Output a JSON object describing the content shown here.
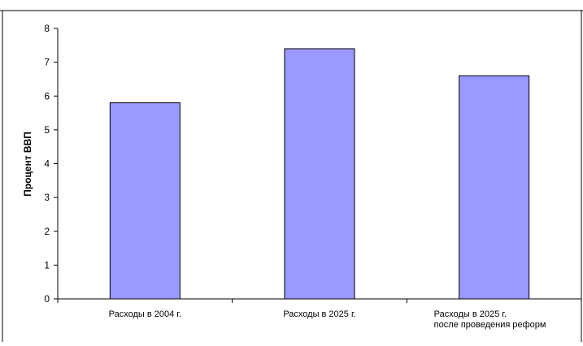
{
  "chart_data": {
    "type": "bar",
    "title": "",
    "xlabel": "",
    "ylabel": "Процент ВВП",
    "ylim": [
      0,
      8
    ],
    "yticks": [
      0,
      1,
      2,
      3,
      4,
      5,
      6,
      7,
      8
    ],
    "grid": false,
    "categories": [
      [
        "Расходы в 2004 г."
      ],
      [
        "Расходы в 2025 г."
      ],
      [
        "Расходы в 2025 г.",
        "после проведения реформ"
      ]
    ],
    "values": [
      5.8,
      7.4,
      6.6
    ]
  },
  "colors": {
    "bar_fill": "#9999FF",
    "bar_stroke": "#000000",
    "axis": "#000000",
    "frame": "#000000"
  }
}
